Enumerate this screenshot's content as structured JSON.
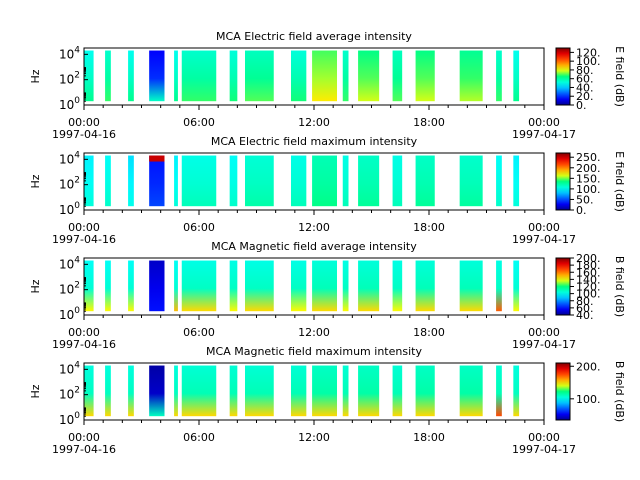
{
  "figure": {
    "time_range": [
      "1997-04-16T00:00",
      "1997-04-17T00:00"
    ]
  },
  "chart_data": [
    {
      "type": "heatmap",
      "title": "MCA  Electric field average intensity",
      "ylabel": "Hz",
      "colorbar_label": "E field (dB)",
      "colorbar_ticks": [
        "0.",
        "20.",
        "40.",
        "60.",
        "80.",
        "100.",
        "120."
      ],
      "colorbar_range": [
        0,
        130
      ],
      "y_ticks": [
        "10^0",
        "10^2",
        "10^4"
      ],
      "y_range_log10": [
        0,
        4.5
      ],
      "x_ticks": [
        {
          "top": "00:00",
          "bottom": "1997-04-16",
          "hour": 0
        },
        {
          "top": "06:00",
          "bottom": "",
          "hour": 6
        },
        {
          "top": "12:00",
          "bottom": "",
          "hour": 12
        },
        {
          "top": "18:00",
          "bottom": "",
          "hour": 18
        },
        {
          "top": "00:00",
          "bottom": "1997-04-17",
          "hour": 24
        }
      ],
      "data_y_log10": [
        0.3,
        4.3
      ],
      "segments": [
        {
          "start": 0.0,
          "end": 0.5,
          "level": 55
        },
        {
          "start": 1.1,
          "end": 1.4,
          "level": 60
        },
        {
          "start": 2.3,
          "end": 2.6,
          "level": 55
        },
        {
          "start": 3.4,
          "end": 4.2,
          "level": 20,
          "band_low_level": 55
        },
        {
          "start": 4.7,
          "end": 4.9,
          "level": 55
        },
        {
          "start": 5.1,
          "end": 6.9,
          "level": 60
        },
        {
          "start": 7.6,
          "end": 8.0,
          "level": 58
        },
        {
          "start": 8.4,
          "end": 9.9,
          "level": 62
        },
        {
          "start": 10.8,
          "end": 11.6,
          "level": 58
        },
        {
          "start": 11.9,
          "end": 13.2,
          "level": 75
        },
        {
          "start": 13.5,
          "end": 13.8,
          "level": 60
        },
        {
          "start": 14.3,
          "end": 15.4,
          "level": 70
        },
        {
          "start": 16.1,
          "end": 16.6,
          "level": 62
        },
        {
          "start": 17.3,
          "end": 18.3,
          "level": 70
        },
        {
          "start": 19.6,
          "end": 20.8,
          "level": 68
        },
        {
          "start": 21.5,
          "end": 21.8,
          "level": 60
        },
        {
          "start": 22.4,
          "end": 22.7,
          "level": 55
        }
      ]
    },
    {
      "type": "heatmap",
      "title": "MCA  Electric field maximum intensity",
      "ylabel": "Hz",
      "colorbar_label": "E field (dB)",
      "colorbar_ticks": [
        "0.",
        "50.",
        "100.",
        "150.",
        "200.",
        "250."
      ],
      "colorbar_range": [
        0,
        270
      ],
      "y_ticks": [
        "10^0",
        "10^2",
        "10^4"
      ],
      "y_range_log10": [
        0,
        4.5
      ],
      "x_ticks": [
        {
          "top": "00:00",
          "bottom": "1997-04-16",
          "hour": 0
        },
        {
          "top": "06:00",
          "bottom": "",
          "hour": 6
        },
        {
          "top": "12:00",
          "bottom": "",
          "hour": 12
        },
        {
          "top": "18:00",
          "bottom": "",
          "hour": 18
        },
        {
          "top": "00:00",
          "bottom": "1997-04-17",
          "hour": 24
        }
      ],
      "data_y_log10": [
        0.3,
        4.3
      ],
      "segments": [
        {
          "start": 0.0,
          "end": 0.5,
          "level": 100
        },
        {
          "start": 1.1,
          "end": 1.4,
          "level": 105
        },
        {
          "start": 2.3,
          "end": 2.6,
          "level": 95
        },
        {
          "start": 3.4,
          "end": 4.2,
          "level": 40,
          "top_hot_level": 250
        },
        {
          "start": 4.7,
          "end": 4.9,
          "level": 100
        },
        {
          "start": 5.1,
          "end": 6.9,
          "level": 110
        },
        {
          "start": 7.6,
          "end": 8.0,
          "level": 105
        },
        {
          "start": 8.4,
          "end": 9.9,
          "level": 115
        },
        {
          "start": 10.8,
          "end": 11.6,
          "level": 110
        },
        {
          "start": 11.9,
          "end": 13.2,
          "level": 125
        },
        {
          "start": 13.5,
          "end": 13.8,
          "level": 110
        },
        {
          "start": 14.3,
          "end": 15.4,
          "level": 120
        },
        {
          "start": 16.1,
          "end": 16.6,
          "level": 110
        },
        {
          "start": 17.3,
          "end": 18.3,
          "level": 120
        },
        {
          "start": 19.6,
          "end": 20.8,
          "level": 118
        },
        {
          "start": 21.5,
          "end": 21.8,
          "level": 105
        },
        {
          "start": 22.4,
          "end": 22.7,
          "level": 100
        }
      ]
    },
    {
      "type": "heatmap",
      "title": "MCA  Magnetic field average intensity",
      "ylabel": "Hz",
      "colorbar_label": "B field (dB)",
      "colorbar_ticks": [
        "40.",
        "60.",
        "80.",
        "100.",
        "120.",
        "140.",
        "160.",
        "180.",
        "200."
      ],
      "colorbar_range": [
        40,
        200
      ],
      "y_ticks": [
        "10^0",
        "10^2",
        "10^4"
      ],
      "y_range_log10": [
        0,
        4.5
      ],
      "x_ticks": [
        {
          "top": "00:00",
          "bottom": "1997-04-16",
          "hour": 0
        },
        {
          "top": "06:00",
          "bottom": "",
          "hour": 6
        },
        {
          "top": "12:00",
          "bottom": "",
          "hour": 12
        },
        {
          "top": "18:00",
          "bottom": "",
          "hour": 18
        },
        {
          "top": "00:00",
          "bottom": "1997-04-17",
          "hour": 24
        }
      ],
      "data_y_log10": [
        0.3,
        4.3
      ],
      "segments": [
        {
          "start": 0.0,
          "end": 0.5,
          "level": 105,
          "low_level": 140
        },
        {
          "start": 1.1,
          "end": 1.4,
          "level": 105,
          "low_level": 140
        },
        {
          "start": 2.3,
          "end": 2.6,
          "level": 105,
          "low_level": 140
        },
        {
          "start": 3.4,
          "end": 4.2,
          "level": 55,
          "low_level": 60
        },
        {
          "start": 4.7,
          "end": 4.9,
          "level": 105,
          "low_level": 150
        },
        {
          "start": 5.1,
          "end": 6.9,
          "level": 108,
          "low_level": 145
        },
        {
          "start": 7.6,
          "end": 8.0,
          "level": 108,
          "low_level": 140
        },
        {
          "start": 8.4,
          "end": 9.9,
          "level": 108,
          "low_level": 145
        },
        {
          "start": 10.8,
          "end": 11.6,
          "level": 108,
          "low_level": 140
        },
        {
          "start": 11.9,
          "end": 13.2,
          "level": 110,
          "low_level": 145
        },
        {
          "start": 13.5,
          "end": 13.8,
          "level": 108,
          "low_level": 140
        },
        {
          "start": 14.3,
          "end": 15.4,
          "level": 110,
          "low_level": 145
        },
        {
          "start": 16.1,
          "end": 16.6,
          "level": 108,
          "low_level": 140
        },
        {
          "start": 17.3,
          "end": 18.3,
          "level": 110,
          "low_level": 145
        },
        {
          "start": 19.6,
          "end": 20.8,
          "level": 110,
          "low_level": 145
        },
        {
          "start": 21.5,
          "end": 21.8,
          "level": 108,
          "low_level": 165
        },
        {
          "start": 22.4,
          "end": 22.7,
          "level": 105,
          "low_level": 140
        }
      ]
    },
    {
      "type": "heatmap",
      "title": "MCA  Magnetic field maximum intensity",
      "ylabel": "Hz",
      "colorbar_label": "B field (dB)",
      "colorbar_ticks": [
        "100.",
        "200."
      ],
      "colorbar_range": [
        35,
        210
      ],
      "y_ticks": [
        "10^0",
        "10^2",
        "10^4"
      ],
      "y_range_log10": [
        0,
        4.5
      ],
      "x_ticks": [
        {
          "top": "00:00",
          "bottom": "1997-04-16",
          "hour": 0
        },
        {
          "top": "06:00",
          "bottom": "",
          "hour": 6
        },
        {
          "top": "12:00",
          "bottom": "",
          "hour": 12
        },
        {
          "top": "18:00",
          "bottom": "",
          "hour": 18
        },
        {
          "top": "00:00",
          "bottom": "1997-04-17",
          "hour": 24
        }
      ],
      "data_y_log10": [
        0.3,
        4.3
      ],
      "segments": [
        {
          "start": 0.0,
          "end": 0.5,
          "level": 110,
          "low_level": 150
        },
        {
          "start": 1.1,
          "end": 1.4,
          "level": 110,
          "low_level": 150
        },
        {
          "start": 2.3,
          "end": 2.6,
          "level": 110,
          "low_level": 150
        },
        {
          "start": 3.4,
          "end": 4.2,
          "level": 45,
          "low_level": 110
        },
        {
          "start": 4.7,
          "end": 4.9,
          "level": 110,
          "low_level": 150
        },
        {
          "start": 5.1,
          "end": 6.9,
          "level": 112,
          "low_level": 150
        },
        {
          "start": 7.6,
          "end": 8.0,
          "level": 112,
          "low_level": 150
        },
        {
          "start": 8.4,
          "end": 9.9,
          "level": 112,
          "low_level": 150
        },
        {
          "start": 10.8,
          "end": 11.6,
          "level": 112,
          "low_level": 150
        },
        {
          "start": 11.9,
          "end": 13.2,
          "level": 115,
          "low_level": 150
        },
        {
          "start": 13.5,
          "end": 13.8,
          "level": 112,
          "low_level": 150
        },
        {
          "start": 14.3,
          "end": 15.4,
          "level": 115,
          "low_level": 150
        },
        {
          "start": 16.1,
          "end": 16.6,
          "level": 112,
          "low_level": 150
        },
        {
          "start": 17.3,
          "end": 18.3,
          "level": 115,
          "low_level": 150
        },
        {
          "start": 19.6,
          "end": 20.8,
          "level": 115,
          "low_level": 150
        },
        {
          "start": 21.5,
          "end": 21.8,
          "level": 112,
          "low_level": 175
        },
        {
          "start": 22.4,
          "end": 22.7,
          "level": 110,
          "low_level": 150
        }
      ]
    }
  ]
}
